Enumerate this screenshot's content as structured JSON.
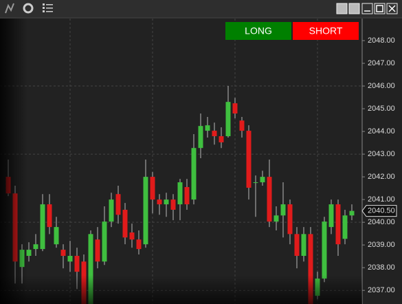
{
  "chart_data": {
    "type": "candlestick",
    "open": [
      2042.0,
      2041.27,
      2038.03,
      2038.52,
      2038.82,
      2038.82,
      2040.79,
      2039.03,
      2038.79,
      2038.27,
      2038.52,
      2038.27,
      2036.39,
      2039.24,
      2038.27,
      2040.03,
      2041.24,
      2040.55,
      2039.55,
      2039.24,
      2039.03,
      2042.0,
      2041.0,
      2040.79,
      2041.0,
      2040.79,
      2041.55,
      2041.0,
      2043.27,
      2044.03,
      2044.03,
      2043.79,
      2043.79,
      2045.24,
      2044.48,
      2044.03,
      2041.76,
      2041.76,
      2042.0,
      2040.03,
      2040.3,
      2040.79,
      2039.48,
      2038.52,
      2039.48,
      2036.76,
      2037.52,
      2039.79,
      2040.79,
      2039.27,
      2040.3
    ],
    "high": [
      2042.76,
      2041.61,
      2039.03,
      2039.12,
      2039.48,
      2041.24,
      2041.24,
      2040.24,
      2039.03,
      2039.18,
      2038.88,
      2038.58,
      2039.64,
      2039.79,
      2040.7,
      2041.3,
      2041.61,
      2040.85,
      2039.94,
      2039.64,
      2042.76,
      2042.21,
      2041.24,
      2041.3,
      2041.24,
      2041.91,
      2041.91,
      2043.88,
      2044.79,
      2044.64,
      2044.39,
      2044.18,
      2046.0,
      2045.48,
      2044.64,
      2044.27,
      2042.06,
      2042.27,
      2042.76,
      2040.7,
      2041.76,
      2041.0,
      2039.79,
      2039.79,
      2039.79,
      2037.82,
      2040.24,
      2041.0,
      2041.0,
      2040.55,
      2040.79
    ],
    "low": [
      2041.15,
      2037.3,
      2037.3,
      2038.27,
      2038.52,
      2038.73,
      2039.48,
      2038.88,
      2037.97,
      2037.82,
      2037.06,
      2036.39,
      2036.39,
      2037.97,
      2038.12,
      2039.79,
      2039.94,
      2039.03,
      2038.88,
      2038.58,
      2038.88,
      2040.39,
      2040.33,
      2040.24,
      2040.09,
      2040.09,
      2040.55,
      2040.79,
      2042.82,
      2043.73,
      2043.42,
      2043.27,
      2043.73,
      2044.58,
      2043.73,
      2041.0,
      2040.24,
      2041.61,
      2039.79,
      2039.64,
      2039.33,
      2039.03,
      2037.97,
      2038.27,
      2036.39,
      2036.61,
      2037.36,
      2039.48,
      2038.52,
      2039.03,
      2040.09
    ],
    "close": [
      2041.27,
      2038.27,
      2038.79,
      2038.79,
      2039.03,
      2040.79,
      2039.79,
      2039.79,
      2038.52,
      2038.52,
      2037.82,
      2036.39,
      2039.48,
      2038.27,
      2040.03,
      2041.0,
      2040.33,
      2039.33,
      2039.24,
      2038.82,
      2042.0,
      2041.0,
      2040.79,
      2041.0,
      2040.55,
      2041.76,
      2040.79,
      2043.27,
      2044.24,
      2044.27,
      2043.79,
      2043.52,
      2045.3,
      2044.79,
      2044.03,
      2041.52,
      2041.76,
      2042.0,
      2040.03,
      2040.3,
      2040.79,
      2039.48,
      2038.52,
      2039.48,
      2036.39,
      2037.52,
      2040.03,
      2040.79,
      2039.03,
      2040.3,
      2040.5
    ],
    "up_color": "#3fbf3f",
    "down_color": "#e01b1b",
    "ylim": [
      2036.4,
      2048.94
    ],
    "yticks": [
      {
        "value": 2037,
        "label": "2037.00"
      },
      {
        "value": 2038,
        "label": "2038.00"
      },
      {
        "value": 2039,
        "label": "2039.00"
      },
      {
        "value": 2040,
        "label": "2040.00"
      },
      {
        "value": 2041,
        "label": "2041.00"
      },
      {
        "value": 2042,
        "label": "2042.00"
      },
      {
        "value": 2043,
        "label": "2043.00"
      },
      {
        "value": 2044,
        "label": "2044.00"
      },
      {
        "value": 2045,
        "label": "2045.00"
      },
      {
        "value": 2046,
        "label": "2046.00"
      },
      {
        "value": 2047,
        "label": "2047.00"
      },
      {
        "value": 2048,
        "label": "2048.00"
      }
    ],
    "grid_y": [
      2037,
      2040,
      2043,
      2046
    ],
    "last_price": {
      "value": 2040.5,
      "label": "2040.50"
    },
    "buttons": [
      {
        "label": "LONG",
        "color": "#008000"
      },
      {
        "label": "SHORT",
        "color": "#ff0000"
      }
    ]
  }
}
